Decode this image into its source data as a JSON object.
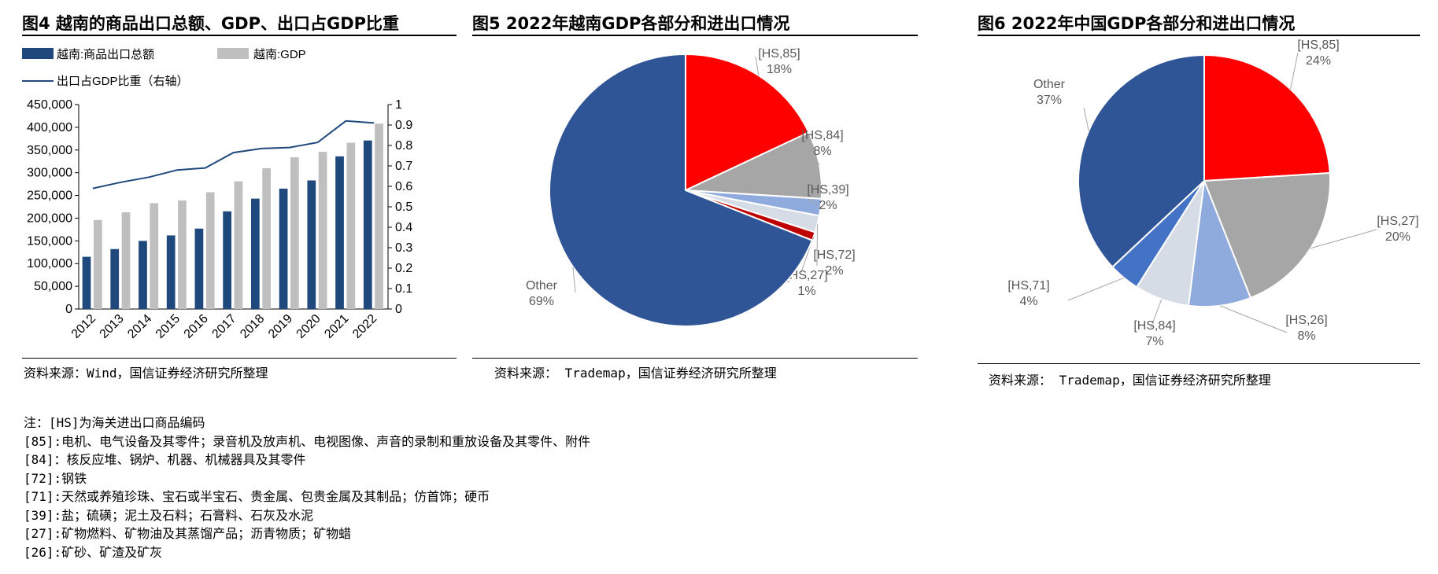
{
  "colors": {
    "navy": "#1f497d",
    "gray": "#bfbfbf",
    "line": "#1f497d",
    "pie_blue": "#2f5597",
    "red": "#ff0000",
    "pie_gray": "#a6a6a6",
    "light_blue": "#8faadc",
    "lighter": "#d6dce5",
    "dark_red": "#c00000",
    "mid_blue": "#4472c4"
  },
  "fig4": {
    "title": "图4 越南的商品出口总额、GDP、出口占GDP比重",
    "source": "资料来源：Wind，国信证券经济研究所整理"
  },
  "fig5": {
    "title": "图5 2022年越南GDP各部分和进出口情况",
    "source": "资料来源： Trademap，国信证券经济研究所整理"
  },
  "fig6": {
    "title": "图6 2022年中国GDP各部分和进出口情况",
    "source": "资料来源： Trademap，国信证券经济研究所整理"
  },
  "notes": [
    "注：[HS]为海关进出口商品编码",
    "[85]:电机、电气设备及其零件；录音机及放声机、电视图像、声音的录制和重放设备及其零件、附件",
    "[84]：核反应堆、锅炉、机器、机械器具及其零件",
    "[72]:钢铁",
    "[71]:天然或养殖珍珠、宝石或半宝石、贵金属、包贵金属及其制品；仿首饰；硬币",
    "[39]:盐；硫磺；泥土及石料；石膏料、石灰及水泥",
    "[27]:矿物燃料、矿物油及其蒸馏产品；沥青物质；矿物蜡",
    "[26]:矿砂、矿渣及矿灰"
  ],
  "chart_data": [
    {
      "type": "bar",
      "categories": [
        "2012",
        "2013",
        "2014",
        "2015",
        "2016",
        "2017",
        "2018",
        "2019",
        "2020",
        "2021",
        "2022"
      ],
      "series": [
        {
          "name": "越南:商品出口总额",
          "kind": "bar",
          "axis": "left",
          "values": [
            115000,
            132000,
            150000,
            162000,
            177000,
            215000,
            243000,
            265000,
            283000,
            336000,
            371000
          ]
        },
        {
          "name": "越南:GDP",
          "kind": "bar",
          "axis": "left",
          "values": [
            196000,
            213000,
            233000,
            239000,
            257000,
            281000,
            310000,
            334000,
            346000,
            366000,
            408000
          ]
        },
        {
          "name": "出口占GDP比重（右轴）",
          "kind": "line",
          "axis": "right",
          "values": [
            0.59,
            0.62,
            0.645,
            0.68,
            0.69,
            0.765,
            0.785,
            0.79,
            0.815,
            0.92,
            0.91
          ]
        }
      ],
      "yticks_left": [
        "0",
        "50,000",
        "100,000",
        "150,000",
        "200,000",
        "250,000",
        "300,000",
        "350,000",
        "400,000",
        "450,000"
      ],
      "yticks_right": [
        "0",
        "0.1",
        "0.2",
        "0.3",
        "0.4",
        "0.5",
        "0.6",
        "0.7",
        "0.8",
        "0.9",
        "1"
      ],
      "ylim_left": [
        0,
        450000
      ],
      "ylim_right": [
        0,
        1
      ],
      "legend_placement": "top",
      "grid": false
    },
    {
      "type": "pie",
      "slices": [
        {
          "code": "[HS,85]",
          "label": "18%",
          "value": 18,
          "color_key": "red"
        },
        {
          "code": "[HS,84]",
          "label": "8%",
          "value": 8,
          "color_key": "pie_gray"
        },
        {
          "code": "[HS,39]",
          "label": "2%",
          "value": 2,
          "color_key": "light_blue"
        },
        {
          "code": "[HS,72]",
          "label": "2%",
          "value": 2,
          "color_key": "lighter"
        },
        {
          "code": "[HS,27]",
          "label": "1%",
          "value": 1,
          "color_key": "dark_red"
        },
        {
          "code": "Other",
          "label": "69%",
          "value": 69,
          "color_key": "pie_blue"
        }
      ]
    },
    {
      "type": "pie",
      "slices": [
        {
          "code": "[HS,85]",
          "label": "24%",
          "value": 24,
          "color_key": "red"
        },
        {
          "code": "[HS,27]",
          "label": "20%",
          "value": 20,
          "color_key": "pie_gray"
        },
        {
          "code": "[HS,26]",
          "label": "8%",
          "value": 8,
          "color_key": "light_blue"
        },
        {
          "code": "[HS,84]",
          "label": "7%",
          "value": 7,
          "color_key": "lighter"
        },
        {
          "code": "[HS,71]",
          "label": "4%",
          "value": 4,
          "color_key": "mid_blue"
        },
        {
          "code": "Other",
          "label": "37%",
          "value": 37,
          "color_key": "pie_blue"
        }
      ]
    }
  ]
}
